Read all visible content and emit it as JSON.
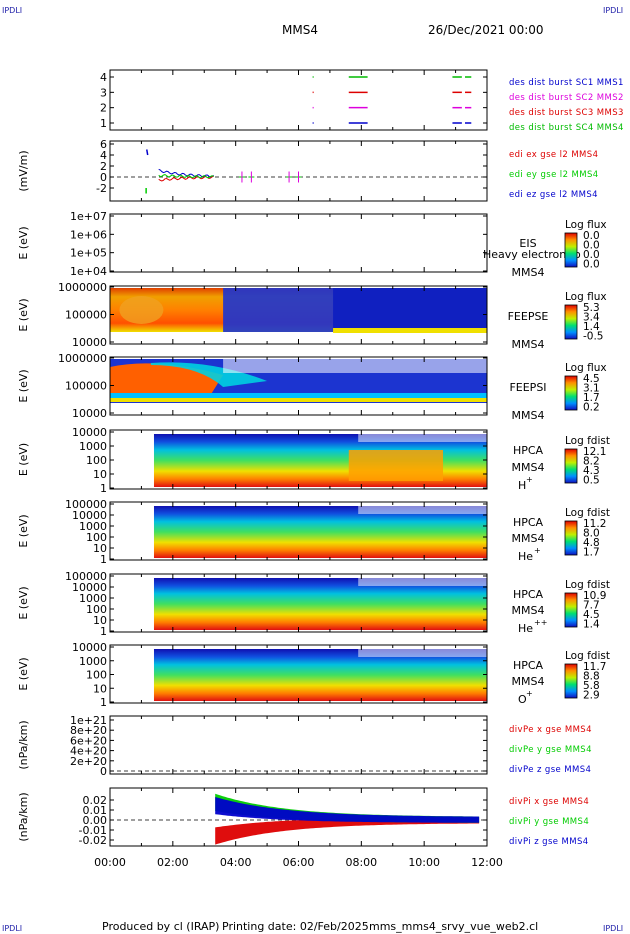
{
  "corner_label": "IPDLI",
  "header": {
    "spacecraft": "MMS4",
    "datetime": "26/Dec/2021 00:00"
  },
  "footer": {
    "producer": "Produced by cl (IRAP)",
    "printing_date": "Printing date: 02/Feb/2025",
    "script": "mms_mms4_srvy_vue_web2.cl"
  },
  "colors": {
    "mms1": "#0000cc",
    "mms2": "#dd00dd",
    "mms3": "#dd0000",
    "mms4": "#00bb00",
    "x": "#dd0000",
    "y": "#00cc00",
    "z": "#0000cc"
  },
  "chart_data": [
    {
      "id": "burst",
      "type": "scatter",
      "ylim": [
        0.5,
        4.5
      ],
      "ticks": [
        "4",
        "3",
        "2",
        "1"
      ],
      "legend": [
        "des dist burst SC1 MMS1",
        "des dist burst SC2 MMS2",
        "des dist burst SC3 MMS3",
        "des dist burst SC4 MMS4"
      ],
      "series": [
        {
          "value": 1,
          "color": "mms1",
          "intervals": [
            [
              6.45,
              6.47
            ],
            [
              7.6,
              8.2
            ],
            [
              10.9,
              11.2
            ],
            [
              11.3,
              11.5
            ]
          ]
        },
        {
          "value": 2,
          "color": "mms2",
          "intervals": [
            [
              6.45,
              6.47
            ],
            [
              7.6,
              8.2
            ],
            [
              10.9,
              11.2
            ],
            [
              11.3,
              11.5
            ]
          ]
        },
        {
          "value": 3,
          "color": "mms3",
          "intervals": [
            [
              6.45,
              6.47
            ],
            [
              7.6,
              8.2
            ],
            [
              10.9,
              11.2
            ],
            [
              11.3,
              11.5
            ]
          ]
        },
        {
          "value": 4,
          "color": "mms4",
          "intervals": [
            [
              6.45,
              6.47
            ],
            [
              7.6,
              8.2
            ],
            [
              10.9,
              11.2
            ],
            [
              11.3,
              11.5
            ]
          ]
        }
      ]
    },
    {
      "id": "edi",
      "type": "line",
      "ylabel": "(mV/m)",
      "ylim": [
        -4,
        6
      ],
      "ticks": [
        "6",
        "4",
        "2",
        "0",
        "-2"
      ],
      "legend": [
        "edi ex gse l2 MMS4",
        "edi ey gse l2 MMS4",
        "edi ez gse l2 MMS4"
      ]
    },
    {
      "id": "eis",
      "type": "heatmap",
      "ylabel": "E (eV)",
      "ticks": [
        "1e+07",
        "1e+06",
        "1e+05",
        "1e+04"
      ],
      "labels": [
        "EIS",
        "MMS4"
      ],
      "overlay": "Heavy electron to",
      "cb_title": "Log flux",
      "cb": [
        "0.0",
        "0.0",
        "0.0",
        "0.0"
      ]
    },
    {
      "id": "feepse",
      "type": "heatmap",
      "ylabel": "E (eV)",
      "ticks": [
        "1000000",
        "100000",
        "10000"
      ],
      "labels": [
        "FEEPSE",
        "MMS4"
      ],
      "cb_title": "Log flux",
      "cb": [
        "5.3",
        "3.4",
        "1.4",
        "-0.5"
      ]
    },
    {
      "id": "feepsi",
      "type": "heatmap",
      "ylabel": "E (eV)",
      "ticks": [
        "1000000",
        "100000",
        "10000"
      ],
      "labels": [
        "FEEPSI",
        "MMS4"
      ],
      "cb_title": "Log flux",
      "cb": [
        "4.5",
        "3.1",
        "1.7",
        "0.2"
      ]
    },
    {
      "id": "hpca_h",
      "type": "heatmap",
      "ylabel": "E (eV)",
      "ticks": [
        "10000",
        "1000",
        "100",
        "10",
        "1"
      ],
      "labels": [
        "HPCA",
        "MMS4"
      ],
      "species": "H",
      "charge": "+",
      "cb_title": "Log fdist",
      "cb": [
        "12.1",
        "8.2",
        "4.3",
        "0.5"
      ]
    },
    {
      "id": "hpca_he",
      "type": "heatmap",
      "ylabel": "E (eV)",
      "ticks": [
        "100000",
        "10000",
        "1000",
        "100",
        "10",
        "1"
      ],
      "labels": [
        "HPCA",
        "MMS4"
      ],
      "species": "He",
      "charge": "+",
      "cb_title": "Log fdist",
      "cb": [
        "11.2",
        "8.0",
        "4.8",
        "1.7"
      ]
    },
    {
      "id": "hpca_hepp",
      "type": "heatmap",
      "ylabel": "E (eV)",
      "ticks": [
        "100000",
        "10000",
        "1000",
        "100",
        "10",
        "1"
      ],
      "labels": [
        "HPCA",
        "MMS4"
      ],
      "species": "He",
      "charge": "++",
      "cb_title": "Log fdist",
      "cb": [
        "10.9",
        "7.7",
        "4.5",
        "1.4"
      ]
    },
    {
      "id": "hpca_o",
      "type": "heatmap",
      "ylabel": "E (eV)",
      "ticks": [
        "10000",
        "1000",
        "100",
        "10",
        "1"
      ],
      "labels": [
        "HPCA",
        "MMS4"
      ],
      "species": "O",
      "charge": "+",
      "cb_title": "Log fdist",
      "cb": [
        "11.7",
        "8.8",
        "5.8",
        "2.9"
      ]
    },
    {
      "id": "divpe",
      "type": "line",
      "ylabel": "(nPa/km)",
      "ylim": [
        -1e+20,
        1.05e+21
      ],
      "ticks": [
        "1e+21",
        "8e+20",
        "6e+20",
        "4e+20",
        "2e+20",
        "0"
      ],
      "legend": [
        "divPe x gse MMS4",
        "divPe y gse MMS4",
        "divPe z gse MMS4"
      ]
    },
    {
      "id": "divpi",
      "type": "line",
      "ylabel": "(nPa/km)",
      "ylim": [
        -0.025,
        0.028
      ],
      "ticks": [
        "0.02",
        "0.01",
        "0.00",
        "-0.01",
        "-0.02"
      ],
      "legend": [
        "divPi x gse MMS4",
        "divPi y gse MMS4",
        "divPi z gse MMS4"
      ]
    }
  ],
  "xaxis": {
    "ticks": [
      "00:00",
      "02:00",
      "04:00",
      "06:00",
      "08:00",
      "10:00",
      "12:00"
    ],
    "range_hours": [
      0,
      12
    ]
  }
}
